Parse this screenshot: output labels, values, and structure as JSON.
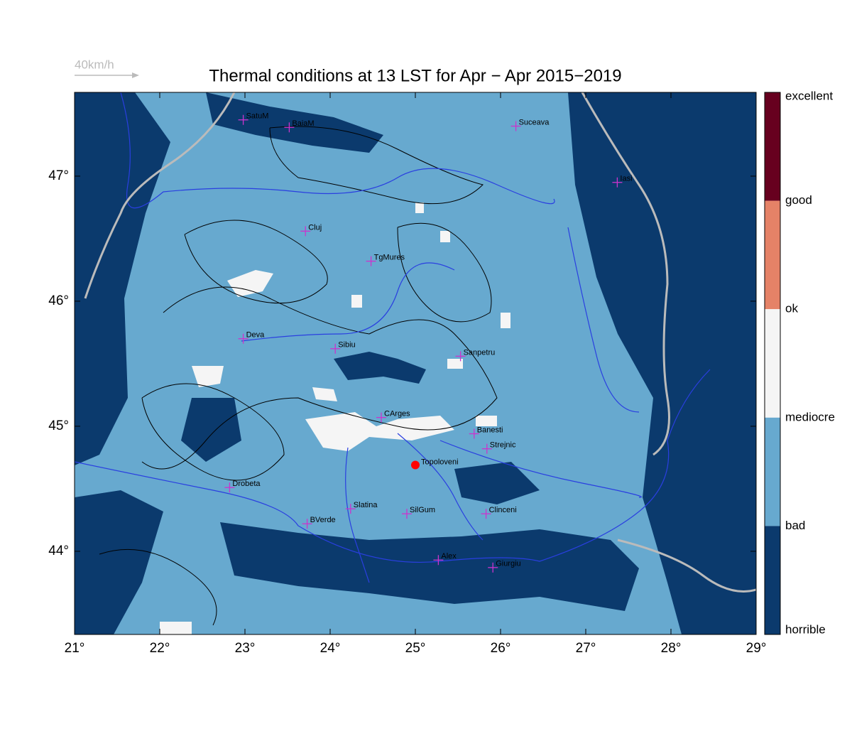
{
  "map": {
    "title": "Thermal conditions at 13 LST for Apr − Apr  2015−2019",
    "wind_scale": "40km/h",
    "xlim": [
      21,
      29
    ],
    "ylim": [
      43.335,
      47.67
    ],
    "xticks": [
      {
        "value": 21,
        "label": "21°"
      },
      {
        "value": 22,
        "label": "22°"
      },
      {
        "value": 23,
        "label": "23°"
      },
      {
        "value": 24,
        "label": "24°"
      },
      {
        "value": 25,
        "label": "25°"
      },
      {
        "value": 26,
        "label": "26°"
      },
      {
        "value": 27,
        "label": "27°"
      },
      {
        "value": 28,
        "label": "28°"
      },
      {
        "value": 29,
        "label": "29°"
      }
    ],
    "yticks": [
      {
        "value": 44,
        "label": "44°"
      },
      {
        "value": 45,
        "label": "45°"
      },
      {
        "value": 46,
        "label": "46°"
      },
      {
        "value": 47,
        "label": "47°"
      }
    ],
    "legend": {
      "labels": [
        "excellent",
        "good",
        "ok",
        "mediocre",
        "bad",
        "horrible"
      ],
      "colors": [
        "#67001f",
        "#e58267",
        "#f5f5f5",
        "#67a9cf",
        "#0b3a6d"
      ]
    },
    "cities": [
      {
        "name": "SatuM",
        "lon": 22.98,
        "lat": 47.45
      },
      {
        "name": "BaiaM",
        "lon": 23.52,
        "lat": 47.39
      },
      {
        "name": "Suceava",
        "lon": 26.18,
        "lat": 47.4
      },
      {
        "name": "Iasi",
        "lon": 27.37,
        "lat": 46.95
      },
      {
        "name": "Cluj",
        "lon": 23.71,
        "lat": 46.56
      },
      {
        "name": "TgMures",
        "lon": 24.48,
        "lat": 46.32
      },
      {
        "name": "Deva",
        "lon": 22.98,
        "lat": 45.7
      },
      {
        "name": "Sibiu",
        "lon": 24.06,
        "lat": 45.62
      },
      {
        "name": "Sanpetru",
        "lon": 25.53,
        "lat": 45.56
      },
      {
        "name": "CArges",
        "lon": 24.6,
        "lat": 45.07
      },
      {
        "name": "Banesti",
        "lon": 25.69,
        "lat": 44.94
      },
      {
        "name": "Strejnic",
        "lon": 25.84,
        "lat": 44.82
      },
      {
        "name": "Drobeta",
        "lon": 22.82,
        "lat": 44.51
      },
      {
        "name": "Slatina",
        "lon": 24.24,
        "lat": 44.34
      },
      {
        "name": "SilGum",
        "lon": 24.9,
        "lat": 44.3
      },
      {
        "name": "Clinceni",
        "lon": 25.83,
        "lat": 44.3
      },
      {
        "name": "BVerde",
        "lon": 23.73,
        "lat": 44.22
      },
      {
        "name": "Alex",
        "lon": 25.27,
        "lat": 43.93
      },
      {
        "name": "Giurgiu",
        "lon": 25.91,
        "lat": 43.87
      }
    ],
    "site": {
      "name": "Topoloveni",
      "lon": 25.0,
      "lat": 44.69,
      "color": "#ff0000"
    }
  }
}
